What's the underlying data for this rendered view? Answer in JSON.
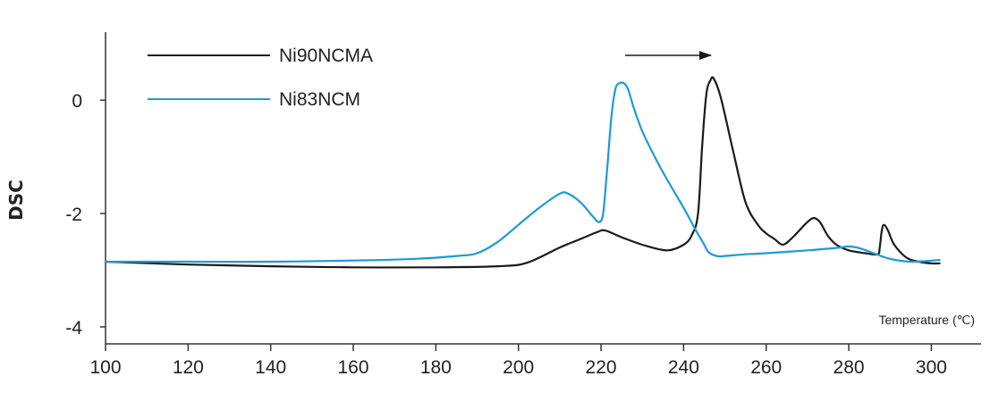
{
  "chart_data": {
    "type": "line",
    "title": "",
    "xlabel": "Temperature (℃)",
    "ylabel": "DSC",
    "xlim": [
      100,
      305
    ],
    "ylim": [
      -4.3,
      1.2
    ],
    "x_ticks": [
      "100",
      "120",
      "140",
      "160",
      "180",
      "200",
      "220",
      "240",
      "260",
      "280",
      "300"
    ],
    "y_ticks": [
      "0",
      "-2",
      "-4"
    ],
    "grid": false,
    "legend_position": "top-left",
    "annotation": "arrow pointing right (+x direction)",
    "series": [
      {
        "name": "Ni90NCMA",
        "color": "#1a1a1a",
        "x": [
          100,
          120,
          140,
          160,
          180,
          195,
          202,
          210,
          215,
          219,
          221,
          225,
          230,
          236,
          240,
          242,
          243.5,
          244.5,
          245.5,
          246.5,
          247.3,
          249,
          252,
          255,
          258,
          260,
          262,
          264,
          266,
          268,
          270,
          271.5,
          273,
          275,
          277,
          280,
          284,
          287,
          287.5,
          288,
          288.5,
          289.5,
          291,
          294,
          297,
          300,
          302
        ],
        "y": [
          -2.85,
          -2.9,
          -2.93,
          -2.95,
          -2.95,
          -2.93,
          -2.87,
          -2.6,
          -2.45,
          -2.33,
          -2.3,
          -2.42,
          -2.55,
          -2.65,
          -2.55,
          -2.38,
          -2.0,
          -0.8,
          0.1,
          0.35,
          0.38,
          0.05,
          -0.9,
          -1.8,
          -2.2,
          -2.35,
          -2.45,
          -2.55,
          -2.45,
          -2.3,
          -2.15,
          -2.08,
          -2.15,
          -2.4,
          -2.55,
          -2.65,
          -2.7,
          -2.72,
          -2.6,
          -2.3,
          -2.2,
          -2.3,
          -2.55,
          -2.78,
          -2.85,
          -2.88,
          -2.88
        ]
      },
      {
        "name": "Ni83NCM",
        "color": "#1a9bd7",
        "x": [
          100,
          120,
          140,
          160,
          175,
          185,
          190,
          195,
          200,
          205,
          210,
          212,
          215,
          218,
          219.5,
          220.5,
          221.5,
          222.5,
          223.5,
          224.5,
          225.5,
          226.5,
          228,
          230,
          233,
          236,
          240,
          243,
          245,
          246,
          248,
          250,
          255,
          260,
          270,
          278,
          280,
          283,
          286,
          290,
          295,
          302
        ],
        "y": [
          -2.85,
          -2.85,
          -2.85,
          -2.83,
          -2.8,
          -2.75,
          -2.7,
          -2.5,
          -2.2,
          -1.9,
          -1.65,
          -1.65,
          -1.8,
          -2.05,
          -2.15,
          -2.0,
          -1.2,
          -0.3,
          0.2,
          0.3,
          0.3,
          0.2,
          -0.15,
          -0.55,
          -1.0,
          -1.4,
          -1.9,
          -2.3,
          -2.55,
          -2.68,
          -2.75,
          -2.75,
          -2.72,
          -2.7,
          -2.65,
          -2.6,
          -2.58,
          -2.62,
          -2.7,
          -2.8,
          -2.85,
          -2.82
        ]
      }
    ]
  }
}
